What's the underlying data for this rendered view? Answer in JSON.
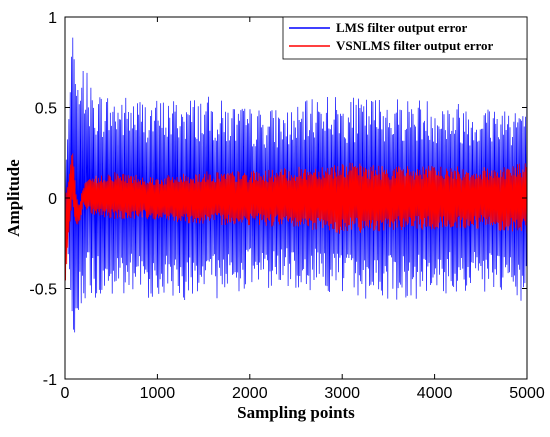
{
  "chart_data": {
    "type": "line",
    "title": "",
    "xlabel": "Sampling points",
    "ylabel": "Amplitude",
    "xlim": [
      0,
      5000
    ],
    "ylim": [
      -1,
      1
    ],
    "x_ticks": [
      0,
      1000,
      2000,
      3000,
      4000,
      5000
    ],
    "x_tick_labels": [
      "0",
      "1000",
      "2000",
      "3000",
      "4000",
      "5000"
    ],
    "y_ticks": [
      -1,
      -0.5,
      0,
      0.5,
      1
    ],
    "y_tick_labels": [
      "-1",
      "-0.5",
      "0",
      "0.5",
      "1"
    ],
    "grid": false,
    "legend_position": "top-right",
    "series": [
      {
        "name": "LMS filter output error",
        "color": "#0000ff",
        "envelope_x": [
          0,
          50,
          80,
          100,
          120,
          150,
          200,
          300,
          500,
          1000,
          1500,
          2000,
          2500,
          2800,
          3000,
          3500,
          4000,
          4500,
          5000
        ],
        "envelope_upper": [
          0.1,
          0.5,
          0.92,
          0.75,
          0.55,
          0.62,
          0.75,
          0.6,
          0.58,
          0.55,
          0.57,
          0.5,
          0.5,
          0.6,
          0.55,
          0.57,
          0.55,
          0.52,
          0.55
        ],
        "envelope_lower": [
          -0.1,
          -0.4,
          -0.65,
          -0.79,
          -0.6,
          -0.62,
          -0.55,
          -0.58,
          -0.57,
          -0.55,
          -0.58,
          -0.5,
          -0.5,
          -0.52,
          -0.55,
          -0.57,
          -0.55,
          -0.52,
          -0.6
        ]
      },
      {
        "name": "VSNLMS filter output error",
        "color": "#ff0000",
        "envelope_x": [
          0,
          40,
          80,
          100,
          120,
          150,
          200,
          300,
          500,
          1000,
          1500,
          2000,
          2500,
          3000,
          3500,
          4000,
          4500,
          5000
        ],
        "envelope_upper": [
          0.0,
          0.1,
          0.27,
          0.15,
          0.02,
          -0.05,
          0.08,
          0.12,
          0.15,
          0.12,
          0.15,
          0.15,
          0.17,
          0.2,
          0.18,
          0.18,
          0.17,
          0.2
        ],
        "envelope_lower": [
          -0.5,
          -0.2,
          0.0,
          -0.1,
          -0.14,
          -0.15,
          -0.05,
          -0.1,
          -0.12,
          -0.12,
          -0.15,
          -0.15,
          -0.17,
          -0.2,
          -0.18,
          -0.18,
          -0.17,
          -0.2
        ]
      }
    ]
  }
}
